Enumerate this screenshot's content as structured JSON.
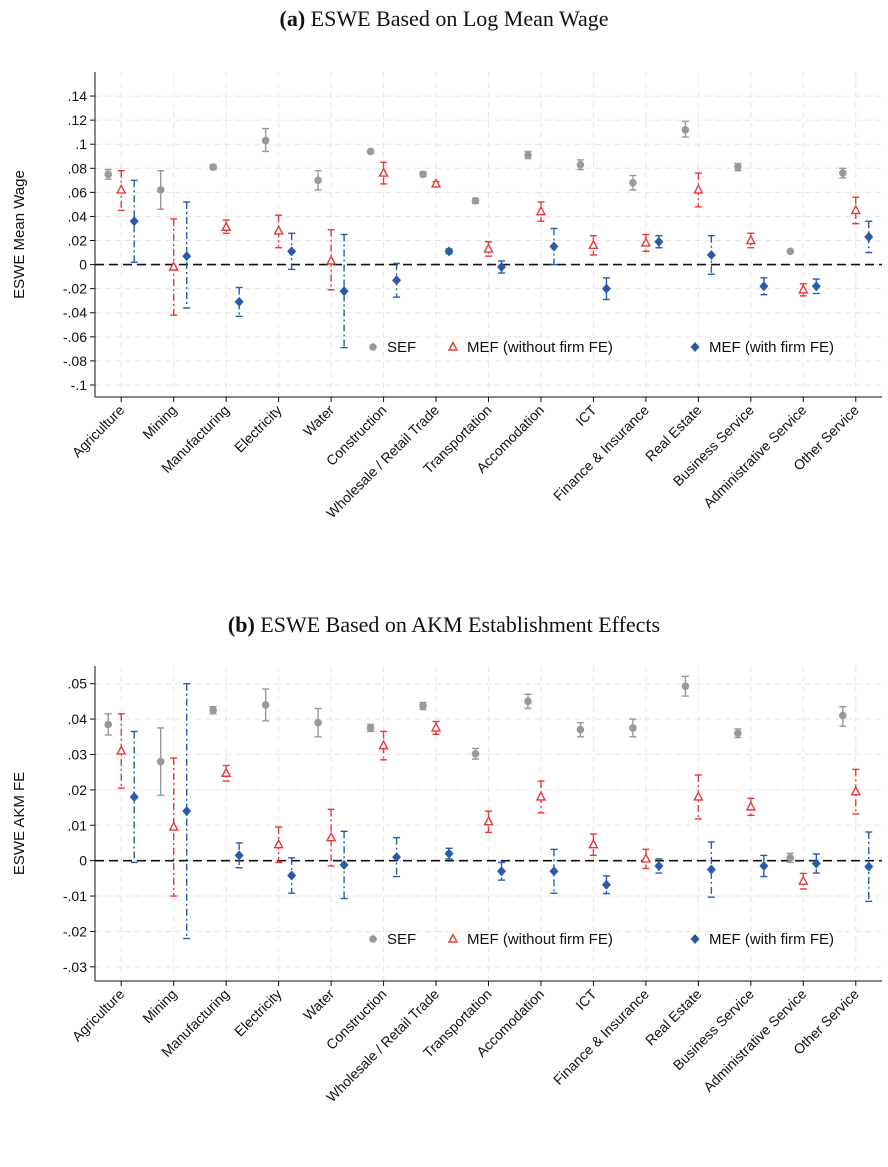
{
  "panels": [
    {
      "label": "(a)",
      "title": "ESWE Based on Log Mean Wage"
    },
    {
      "label": "(b)",
      "title": "ESWE Based on AKM Establishment Effects"
    }
  ],
  "colors": {
    "sef": "#999999",
    "mef_without": "#e8383d",
    "mef_with": "#2a5ba8",
    "zero_line": "#111111",
    "grid": "#e6e6e6"
  },
  "chart_data": [
    {
      "type": "scatter",
      "ylabel": "ESWE Mean Wage",
      "ylim": [
        -0.11,
        0.16
      ],
      "yticks": [
        0.14,
        0.12,
        0.1,
        0.08,
        0.06,
        0.04,
        0.02,
        0,
        -0.02,
        -0.04,
        -0.06,
        -0.08,
        -0.1
      ],
      "ytick_labels": [
        ".14",
        ".12",
        ".1",
        ".08",
        ".06",
        ".04",
        ".02",
        "0",
        "-.02",
        "-.04",
        "-.06",
        "-.08",
        "-.1"
      ],
      "categories": [
        "Agriculture",
        "Mining",
        "Manufacturing",
        "Electricity",
        "Water",
        "Construction",
        "Wholesale / Retail Trade",
        "Transportation",
        "Accomodation",
        "ICT",
        "Finance & Insurance",
        "Real Estate",
        "Business Service",
        "Administrative Service",
        "Other Service"
      ],
      "legend": [
        "SEF",
        "MEF (without firm FE)",
        "MEF (with firm FE)"
      ],
      "legend_position": "bottom-right",
      "grid": true,
      "series": [
        {
          "name": "SEF",
          "marker": "circle",
          "values": [
            0.075,
            0.062,
            0.081,
            0.103,
            0.07,
            0.094,
            0.075,
            0.053,
            0.091,
            0.083,
            0.068,
            0.112,
            0.081,
            0.011,
            0.076
          ],
          "lower": [
            0.071,
            0.046,
            0.079,
            0.094,
            0.062,
            0.093,
            0.073,
            0.051,
            0.088,
            0.079,
            0.062,
            0.106,
            0.078,
            0.01,
            0.072
          ],
          "upper": [
            0.079,
            0.078,
            0.083,
            0.113,
            0.078,
            0.095,
            0.077,
            0.055,
            0.094,
            0.087,
            0.074,
            0.119,
            0.084,
            0.012,
            0.08
          ]
        },
        {
          "name": "MEF (without firm FE)",
          "marker": "triangle",
          "values": [
            0.062,
            -0.002,
            0.031,
            0.028,
            0.003,
            0.076,
            0.067,
            0.013,
            0.044,
            0.016,
            0.018,
            0.062,
            0.02,
            -0.021,
            0.045
          ],
          "lower": [
            0.045,
            -0.042,
            0.026,
            0.014,
            -0.021,
            0.067,
            0.065,
            0.007,
            0.036,
            0.008,
            0.011,
            0.048,
            0.014,
            -0.026,
            0.034
          ],
          "upper": [
            0.078,
            0.038,
            0.037,
            0.041,
            0.029,
            0.085,
            0.069,
            0.019,
            0.052,
            0.024,
            0.025,
            0.076,
            0.026,
            -0.016,
            0.056
          ]
        },
        {
          "name": "MEF (with firm FE)",
          "marker": "diamond",
          "values": [
            0.036,
            0.007,
            -0.031,
            0.011,
            -0.022,
            -0.013,
            0.011,
            -0.002,
            0.015,
            -0.02,
            0.019,
            0.008,
            -0.018,
            -0.018,
            0.023
          ],
          "lower": [
            0.002,
            -0.036,
            -0.043,
            -0.004,
            -0.069,
            -0.027,
            0.009,
            -0.007,
            0.0,
            -0.029,
            0.014,
            -0.008,
            -0.025,
            -0.024,
            0.01
          ],
          "upper": [
            0.07,
            0.052,
            -0.019,
            0.026,
            0.025,
            0.001,
            0.013,
            0.003,
            0.03,
            -0.011,
            0.024,
            0.024,
            -0.011,
            -0.012,
            0.036
          ]
        }
      ]
    },
    {
      "type": "scatter",
      "ylabel": "ESWE AKM FE",
      "ylim": [
        -0.034,
        0.055
      ],
      "yticks": [
        0.05,
        0.04,
        0.03,
        0.02,
        0.01,
        0,
        -0.01,
        -0.02,
        -0.03
      ],
      "ytick_labels": [
        ".05",
        ".04",
        ".03",
        ".02",
        ".01",
        "0",
        "-.01",
        "-.02",
        "-.03"
      ],
      "categories": [
        "Agriculture",
        "Mining",
        "Manufacturing",
        "Electricity",
        "Water",
        "Construction",
        "Wholesale / Retail Trade",
        "Transportation",
        "Accomodation",
        "ICT",
        "Finance & Insurance",
        "Real Estate",
        "Business Service",
        "Administrative Service",
        "Other Service"
      ],
      "legend": [
        "SEF",
        "MEF (without firm FE)",
        "MEF (with firm FE)"
      ],
      "legend_position": "bottom-right",
      "grid": true,
      "series": [
        {
          "name": "SEF",
          "marker": "circle",
          "values": [
            0.0385,
            0.028,
            0.0425,
            0.044,
            0.039,
            0.0375,
            0.0437,
            0.0302,
            0.045,
            0.037,
            0.0375,
            0.0493,
            0.036,
            0.0008,
            0.041
          ],
          "lower": [
            0.0355,
            0.0185,
            0.0415,
            0.0395,
            0.035,
            0.0365,
            0.0427,
            0.0287,
            0.043,
            0.035,
            0.035,
            0.0465,
            0.0348,
            -0.0005,
            0.038
          ],
          "upper": [
            0.0415,
            0.0375,
            0.0435,
            0.0485,
            0.043,
            0.0385,
            0.0447,
            0.0317,
            0.047,
            0.039,
            0.04,
            0.0521,
            0.0372,
            0.0021,
            0.0435
          ]
        },
        {
          "name": "MEF (without firm FE)",
          "marker": "triangle",
          "values": [
            0.031,
            0.0095,
            0.0247,
            0.0045,
            0.0065,
            0.0325,
            0.0375,
            0.011,
            0.018,
            0.0045,
            0.0005,
            0.018,
            0.0152,
            -0.0058,
            0.0195
          ],
          "lower": [
            0.0205,
            -0.01,
            0.0225,
            -0.0005,
            -0.0015,
            0.0285,
            0.0357,
            0.008,
            0.0135,
            0.0015,
            -0.0022,
            0.0118,
            0.0128,
            -0.008,
            0.0132
          ],
          "upper": [
            0.0415,
            0.029,
            0.0269,
            0.0095,
            0.0145,
            0.0365,
            0.0393,
            0.014,
            0.0225,
            0.0075,
            0.0032,
            0.0242,
            0.0176,
            -0.0036,
            0.0258
          ]
        },
        {
          "name": "MEF (with firm FE)",
          "marker": "diamond",
          "values": [
            0.018,
            0.014,
            0.0015,
            -0.0042,
            -0.0012,
            0.001,
            0.002,
            -0.003,
            -0.003,
            -0.0068,
            -0.0015,
            -0.0025,
            -0.0015,
            -0.0008,
            -0.0017
          ],
          "lower": [
            -0.0005,
            -0.022,
            -0.002,
            -0.0092,
            -0.0107,
            -0.0045,
            0.0005,
            -0.0055,
            -0.0092,
            -0.0093,
            -0.0035,
            -0.0103,
            -0.0045,
            -0.0035,
            -0.0115
          ],
          "upper": [
            0.0365,
            0.05,
            0.005,
            0.0008,
            0.0083,
            0.0065,
            0.0035,
            -0.0005,
            0.0032,
            -0.0043,
            0.0005,
            0.0053,
            0.0015,
            0.0019,
            0.0081
          ]
        }
      ]
    }
  ]
}
